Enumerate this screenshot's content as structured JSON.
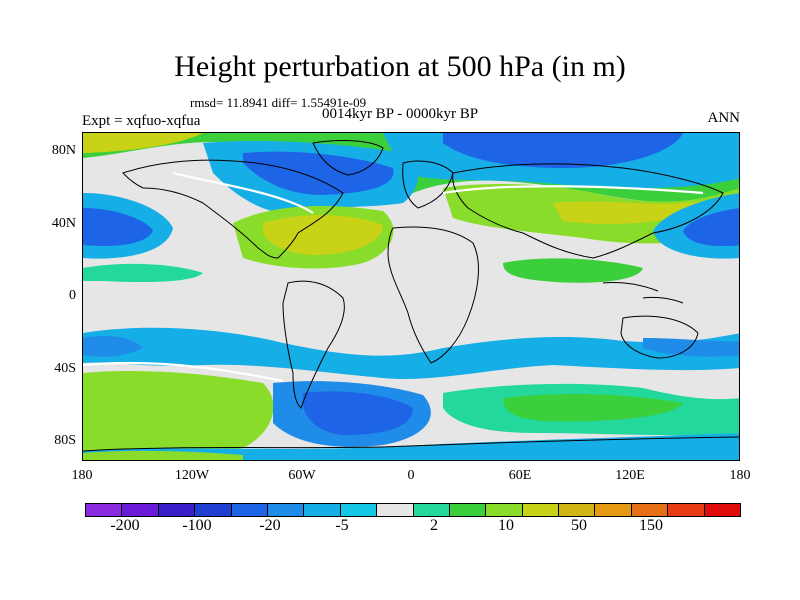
{
  "title": "Height perturbation at 500 hPa (in m)",
  "stats": "rmsd= 11.8941 diff= 1.55491e-09",
  "period": "0014kyr BP - 0000kyr BP",
  "experiment": "Expt = xqfuo-xqfua",
  "season": "ANN",
  "y_axis_labels": [
    "80N",
    "40N",
    "0",
    "40S",
    "80S"
  ],
  "x_axis_labels": [
    "180",
    "120W",
    "60W",
    "0",
    "60E",
    "120E",
    "180"
  ],
  "colorbar": {
    "colors": [
      "#8a2be2",
      "#6a1bd8",
      "#3a1ec8",
      "#1e3fd0",
      "#1e64e6",
      "#1e8ce8",
      "#16aee6",
      "#16c8e8",
      "#e6e6e6",
      "#22d89c",
      "#3ccf3c",
      "#8adc2a",
      "#c8d216",
      "#d2b414",
      "#e69a14",
      "#e66e14",
      "#e83c14",
      "#e00c0c"
    ],
    "labels": [
      "-200",
      "-100",
      "-20",
      "-5",
      "2",
      "10",
      "50",
      "150"
    ]
  },
  "palette": {
    "land_outline": "#000000",
    "neutral": "#e6e6e6"
  }
}
